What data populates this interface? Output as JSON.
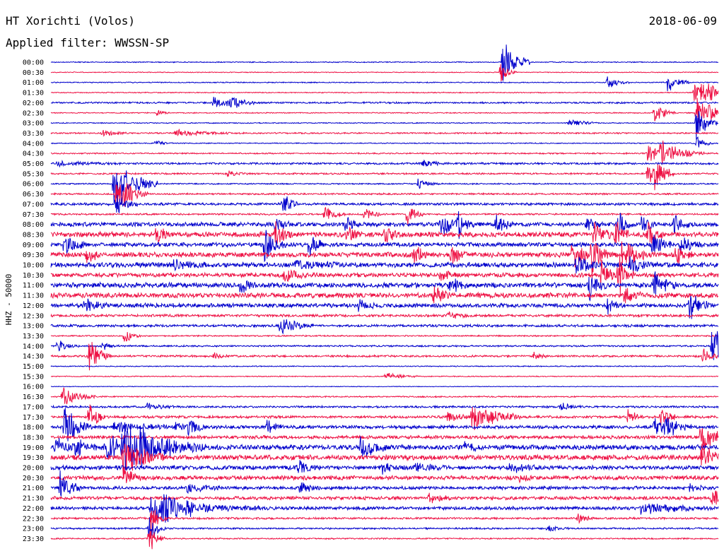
{
  "header": {
    "station": "HT Xorichti (Volos)",
    "date": "2018-06-09",
    "filter": "Applied filter: WWSSN-SP"
  },
  "chart_data": {
    "type": "line",
    "title": "HT Xorichti (Volos)",
    "subtitle": "Applied filter: WWSSN-SP",
    "ylabel": "HHZ - 50000",
    "xlabel": "",
    "row_minutes": 30,
    "colors": [
      "#0000cc",
      "#ee1144"
    ],
    "categories": [
      "00:00",
      "00:30",
      "01:00",
      "01:30",
      "02:00",
      "02:30",
      "03:00",
      "03:30",
      "04:00",
      "04:30",
      "05:00",
      "05:30",
      "06:00",
      "06:30",
      "07:00",
      "07:30",
      "08:00",
      "08:30",
      "09:00",
      "09:30",
      "10:00",
      "10:30",
      "11:00",
      "11:30",
      "12:00",
      "12:30",
      "13:00",
      "13:30",
      "14:00",
      "14:30",
      "15:00",
      "15:30",
      "16:00",
      "16:30",
      "17:00",
      "17:30",
      "18:00",
      "18:30",
      "19:00",
      "19:30",
      "20:00",
      "20:30",
      "21:00",
      "21:30",
      "22:00",
      "22:30",
      "23:00",
      "23:30"
    ],
    "row_noise": [
      0.06,
      0.05,
      0.06,
      0.06,
      0.1,
      0.06,
      0.06,
      0.09,
      0.06,
      0.08,
      0.12,
      0.1,
      0.08,
      0.1,
      0.15,
      0.1,
      0.25,
      0.3,
      0.25,
      0.3,
      0.3,
      0.25,
      0.3,
      0.3,
      0.25,
      0.15,
      0.15,
      0.08,
      0.1,
      0.12,
      0.06,
      0.06,
      0.04,
      0.08,
      0.12,
      0.15,
      0.2,
      0.2,
      0.3,
      0.3,
      0.25,
      0.25,
      0.2,
      0.2,
      0.2,
      0.12,
      0.1,
      0.08
    ],
    "events": [
      [
        0,
        20.3,
        0.5,
        3.5
      ],
      [
        1,
        20.2,
        0.3,
        1.5
      ],
      [
        2,
        25.0,
        0.4,
        0.8
      ],
      [
        2,
        27.7,
        0.4,
        1.5
      ],
      [
        3,
        28.9,
        0.3,
        1.6
      ],
      [
        3,
        29.2,
        0.3,
        1.2
      ],
      [
        3,
        29.6,
        0.3,
        1.0
      ],
      [
        4,
        7.3,
        0.8,
        0.7
      ],
      [
        4,
        8.0,
        0.5,
        0.6
      ],
      [
        5,
        4.8,
        0.3,
        0.4
      ],
      [
        5,
        27.1,
        0.4,
        1.4
      ],
      [
        5,
        29.0,
        0.4,
        2.3
      ],
      [
        5,
        29.6,
        0.3,
        1.0
      ],
      [
        6,
        23.3,
        0.5,
        0.6
      ],
      [
        6,
        29.0,
        0.4,
        2.2
      ],
      [
        7,
        2.3,
        0.5,
        0.4
      ],
      [
        7,
        5.6,
        1.0,
        0.4
      ],
      [
        8,
        4.7,
        0.3,
        0.4
      ],
      [
        8,
        29.0,
        0.3,
        1.0
      ],
      [
        9,
        26.8,
        0.5,
        1.3
      ],
      [
        9,
        27.4,
        0.8,
        1.7
      ],
      [
        10,
        0.3,
        1.0,
        0.3
      ],
      [
        10,
        16.7,
        0.5,
        0.4
      ],
      [
        11,
        7.9,
        0.4,
        0.4
      ],
      [
        11,
        26.8,
        0.4,
        1.2
      ],
      [
        11,
        27.0,
        0.4,
        2.4
      ],
      [
        12,
        2.8,
        0.8,
        3.5
      ],
      [
        12,
        16.5,
        0.4,
        0.6
      ],
      [
        13,
        2.9,
        0.6,
        2.0
      ],
      [
        13,
        3.2,
        0.3,
        1.2
      ],
      [
        14,
        2.9,
        0.4,
        1.5
      ],
      [
        14,
        10.4,
        0.3,
        1.6
      ],
      [
        15,
        12.3,
        0.4,
        1.2
      ],
      [
        15,
        14.1,
        0.3,
        1.0
      ],
      [
        15,
        16.0,
        0.3,
        1.5
      ],
      [
        16,
        10.0,
        0.3,
        1.2
      ],
      [
        16,
        13.2,
        0.3,
        1.0
      ],
      [
        16,
        17.5,
        0.4,
        2.2
      ],
      [
        16,
        18.3,
        0.3,
        1.4
      ],
      [
        16,
        20.0,
        0.3,
        1.6
      ],
      [
        16,
        24.0,
        0.3,
        1.3
      ],
      [
        16,
        25.5,
        0.3,
        2.0
      ],
      [
        16,
        26.5,
        0.3,
        1.5
      ],
      [
        16,
        28.0,
        0.3,
        1.3
      ],
      [
        17,
        4.7,
        0.3,
        1.4
      ],
      [
        17,
        10.1,
        0.3,
        1.8
      ],
      [
        17,
        13.3,
        0.3,
        1.3
      ],
      [
        17,
        15.0,
        0.3,
        1.1
      ],
      [
        17,
        24.4,
        0.3,
        2.2
      ],
      [
        17,
        25.3,
        0.3,
        2.0
      ],
      [
        17,
        26.8,
        0.3,
        1.8
      ],
      [
        18,
        0.6,
        0.4,
        1.4
      ],
      [
        18,
        9.6,
        0.4,
        2.0
      ],
      [
        18,
        11.6,
        0.3,
        1.7
      ],
      [
        18,
        27.0,
        0.4,
        1.5
      ],
      [
        18,
        28.3,
        0.4,
        1.3
      ],
      [
        19,
        1.6,
        0.3,
        1.2
      ],
      [
        19,
        16.3,
        0.3,
        1.3
      ],
      [
        19,
        18.0,
        0.3,
        1.2
      ],
      [
        19,
        23.4,
        0.5,
        1.8
      ],
      [
        19,
        24.3,
        0.3,
        3.5
      ],
      [
        19,
        25.7,
        0.4,
        3.0
      ],
      [
        19,
        28.1,
        0.3,
        1.2
      ],
      [
        20,
        5.5,
        0.6,
        0.6
      ],
      [
        20,
        11.0,
        1.0,
        0.5
      ],
      [
        20,
        23.6,
        0.6,
        1.0
      ],
      [
        20,
        26.0,
        0.4,
        1.2
      ],
      [
        21,
        10.5,
        0.4,
        1.0
      ],
      [
        21,
        17.5,
        0.3,
        1.2
      ],
      [
        21,
        24.7,
        0.3,
        2.2
      ],
      [
        21,
        25.5,
        0.3,
        3.0
      ],
      [
        22,
        8.5,
        0.3,
        1.0
      ],
      [
        22,
        17.9,
        0.4,
        1.3
      ],
      [
        22,
        24.2,
        0.3,
        2.3
      ],
      [
        22,
        27.1,
        0.4,
        2.0
      ],
      [
        23,
        17.2,
        0.3,
        1.5
      ],
      [
        23,
        25.8,
        0.3,
        1.2
      ],
      [
        24,
        1.5,
        0.4,
        0.8
      ],
      [
        24,
        13.8,
        0.3,
        0.8
      ],
      [
        24,
        25.0,
        0.3,
        1.0
      ],
      [
        24,
        28.7,
        0.4,
        1.8
      ],
      [
        25,
        17.8,
        0.5,
        0.4
      ],
      [
        26,
        10.3,
        0.6,
        1.2
      ],
      [
        27,
        3.3,
        0.3,
        1.0
      ],
      [
        28,
        0.3,
        0.4,
        0.8
      ],
      [
        28,
        2.3,
        0.3,
        0.6
      ],
      [
        28,
        29.7,
        0.6,
        2.5
      ],
      [
        29,
        1.7,
        0.4,
        2.5
      ],
      [
        29,
        7.3,
        0.3,
        0.5
      ],
      [
        29,
        21.7,
        0.3,
        0.5
      ],
      [
        29,
        29.3,
        0.3,
        1.2
      ],
      [
        31,
        15.0,
        0.6,
        0.6
      ],
      [
        33,
        0.5,
        0.6,
        1.2
      ],
      [
        34,
        4.3,
        0.5,
        0.5
      ],
      [
        34,
        22.9,
        0.4,
        0.5
      ],
      [
        35,
        1.7,
        0.3,
        2.0
      ],
      [
        35,
        17.8,
        0.5,
        0.8
      ],
      [
        35,
        18.9,
        0.9,
        2.0
      ],
      [
        35,
        25.9,
        0.3,
        1.2
      ],
      [
        35,
        27.4,
        0.3,
        1.5
      ],
      [
        36,
        0.6,
        0.5,
        3.0
      ],
      [
        36,
        2.8,
        1.5,
        0.6
      ],
      [
        36,
        5.6,
        0.3,
        0.5
      ],
      [
        36,
        6.2,
        0.3,
        1.3
      ],
      [
        36,
        9.7,
        0.3,
        1.0
      ],
      [
        36,
        27.1,
        0.5,
        1.5
      ],
      [
        36,
        27.6,
        0.5,
        1.2
      ],
      [
        37,
        29.2,
        0.6,
        2.0
      ],
      [
        38,
        0.2,
        0.5,
        1.3
      ],
      [
        38,
        1.1,
        0.4,
        1.0
      ],
      [
        38,
        2.4,
        0.6,
        1.2
      ],
      [
        38,
        2.6,
        0.3,
        1.4
      ],
      [
        38,
        3.2,
        1.5,
        3.0
      ],
      [
        38,
        4.0,
        0.5,
        1.2
      ],
      [
        38,
        13.9,
        0.5,
        1.5
      ],
      [
        38,
        18.6,
        0.3,
        0.6
      ],
      [
        39,
        3.2,
        0.8,
        2.5
      ],
      [
        39,
        29.2,
        0.5,
        1.6
      ],
      [
        40,
        11.1,
        0.4,
        1.0
      ],
      [
        40,
        14.9,
        0.6,
        0.6
      ],
      [
        40,
        16.4,
        0.6,
        0.6
      ],
      [
        40,
        20.6,
        0.6,
        0.6
      ],
      [
        41,
        3.3,
        0.3,
        1.5
      ],
      [
        41,
        21.0,
        0.4,
        0.5
      ],
      [
        42,
        0.4,
        0.4,
        2.0
      ],
      [
        42,
        6.1,
        0.6,
        0.6
      ],
      [
        42,
        11.2,
        0.4,
        0.8
      ],
      [
        42,
        28.7,
        0.4,
        0.5
      ],
      [
        43,
        17.0,
        0.4,
        0.8
      ],
      [
        43,
        29.7,
        0.5,
        1.2
      ],
      [
        44,
        4.5,
        0.8,
        2.0
      ],
      [
        44,
        5.0,
        0.6,
        1.5
      ],
      [
        44,
        6.1,
        1.5,
        0.6
      ],
      [
        44,
        26.5,
        1.5,
        0.6
      ],
      [
        45,
        4.5,
        0.3,
        1.8
      ],
      [
        45,
        23.7,
        0.3,
        0.6
      ],
      [
        46,
        4.4,
        0.3,
        2.0
      ],
      [
        46,
        22.3,
        0.4,
        0.5
      ],
      [
        47,
        4.4,
        0.3,
        2.0
      ]
    ]
  }
}
